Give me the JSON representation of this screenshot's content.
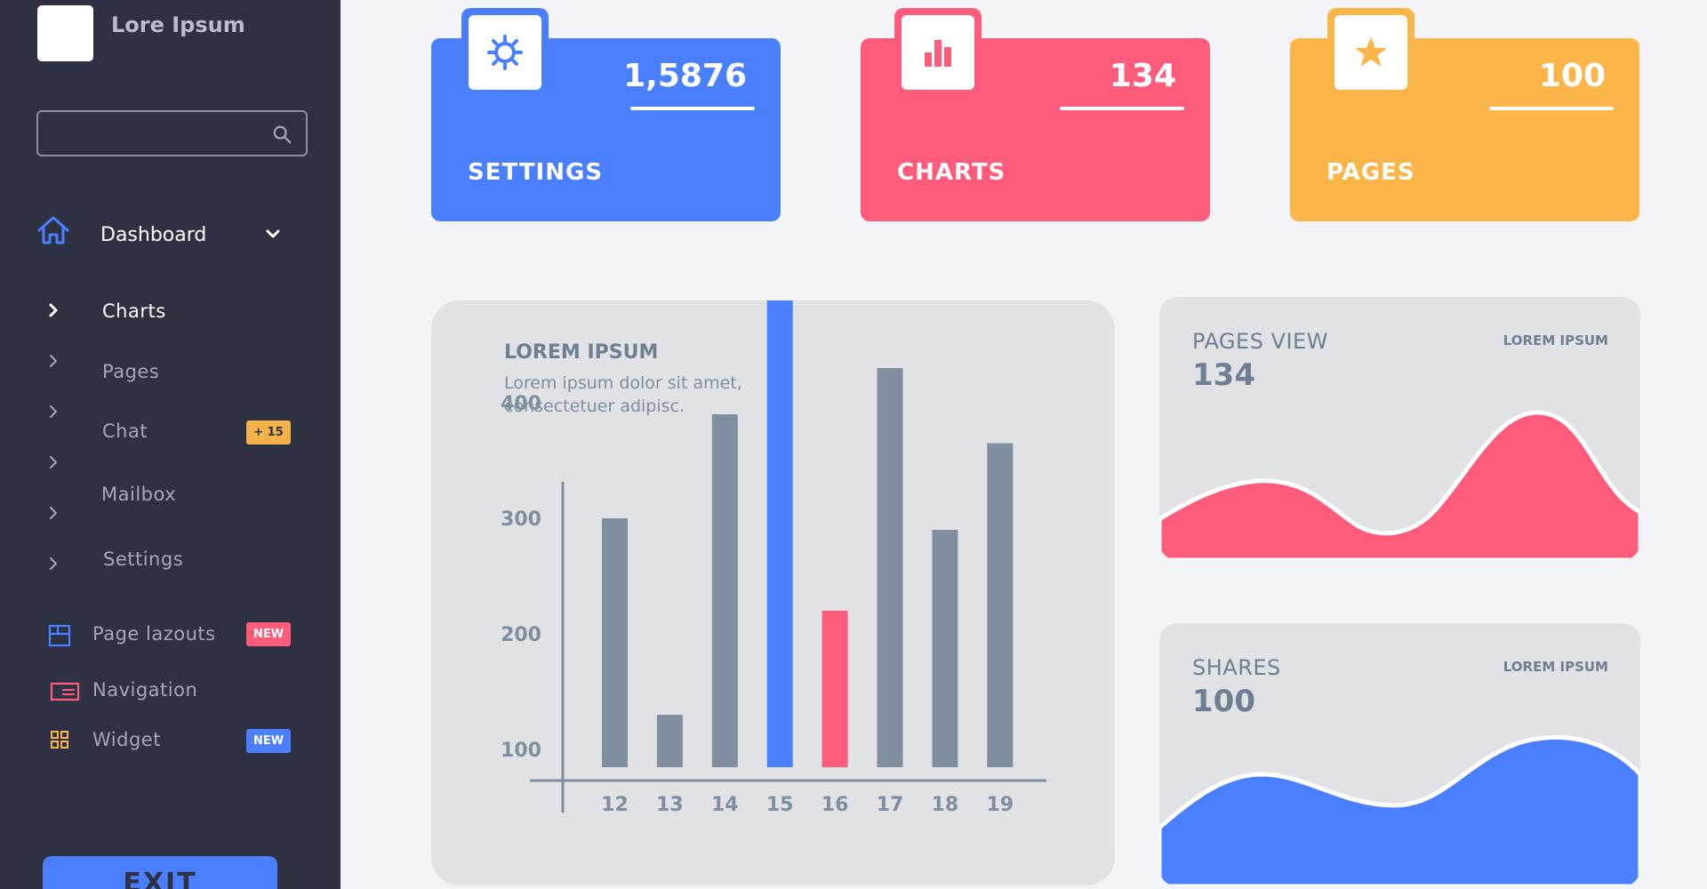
{
  "sidebar": {
    "brand": "Lore Ipsum",
    "search": {
      "placeholder": "",
      "value": ""
    },
    "dashboard_label": "Dashboard",
    "submenu": [
      {
        "label": "Charts",
        "active": true
      },
      {
        "label": "Pages",
        "active": false
      },
      {
        "label": "Chat",
        "active": false,
        "badge": "+ 15"
      },
      {
        "label": "Mailbox",
        "active": false
      },
      {
        "label": "Settings",
        "active": false
      }
    ],
    "extras": [
      {
        "label": "Page lazouts",
        "icon": "layout-icon",
        "badge": "NEW",
        "badge_color": "#ff5c7c"
      },
      {
        "label": "Navigation",
        "icon": "navigation-icon"
      },
      {
        "label": "Widget",
        "icon": "widget-grid-icon",
        "badge": "NEW",
        "badge_color": "#4a80ff"
      }
    ],
    "exit_label": "EXIT"
  },
  "cards": [
    {
      "title": "SETTINGS",
      "value": "1,5876",
      "icon": "gear-icon",
      "color": "#4a80ff"
    },
    {
      "title": "CHARTS",
      "value": "134",
      "icon": "bar-chart-icon",
      "color": "#ff5c7c"
    },
    {
      "title": "PAGES",
      "value": "100",
      "icon": "star-icon",
      "color": "#fbb549"
    }
  ],
  "bar_panel": {
    "title": "LOREM IPSUM",
    "description": "Lorem ipsum dolor sit amet, consectetuer adipisc."
  },
  "chart_data": [
    {
      "type": "bar",
      "title": "LOREM IPSUM",
      "categories": [
        "12",
        "13",
        "14",
        "15",
        "16",
        "17",
        "18",
        "19"
      ],
      "values": [
        300,
        130,
        390,
        490,
        220,
        430,
        290,
        365
      ],
      "highlight_colors": [
        "#808fa0",
        "#808fa0",
        "#808fa0",
        "#4a80ff",
        "#ff5c7c",
        "#808fa0",
        "#808fa0",
        "#808fa0"
      ],
      "yticks": [
        100,
        200,
        300,
        400
      ],
      "xlabel": "",
      "ylabel": "",
      "grid": false
    },
    {
      "type": "area",
      "title": "PAGES VIEW",
      "value": "134",
      "tag": "LOREM IPSUM",
      "color": "#ff5c7c"
    },
    {
      "type": "area",
      "title": "SHARES",
      "value": "100",
      "tag": "LOREM IPSUM",
      "color": "#4a80ff"
    }
  ],
  "colors": {
    "sidebar_bg": "#2d3142",
    "accent_blue": "#4a80ff",
    "accent_red": "#ff5c7c",
    "accent_yellow": "#fbb549",
    "bar_gray": "#808fa0"
  }
}
